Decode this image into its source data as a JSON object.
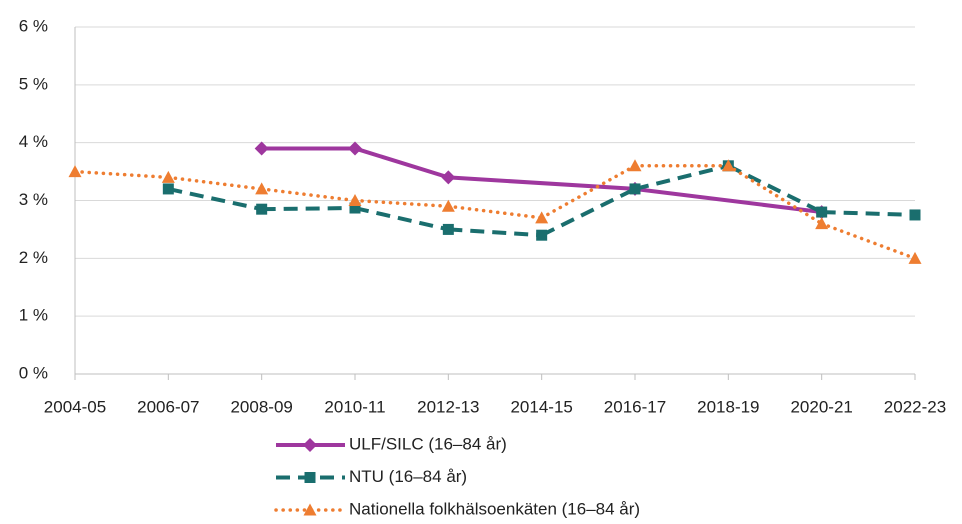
{
  "chart_data": {
    "type": "line",
    "categories": [
      "2004-05",
      "2006-07",
      "2008-09",
      "2010-11",
      "2012-13",
      "2014-15",
      "2016-17",
      "2018-19",
      "2020-21",
      "2022-23"
    ],
    "series": [
      {
        "name": "ULF/SILC (16–84 år)",
        "color": "#9e379e",
        "line_style": "solid",
        "marker": "diamond",
        "values": [
          null,
          null,
          3.9,
          3.9,
          3.4,
          null,
          3.2,
          null,
          2.8,
          null
        ]
      },
      {
        "name": "NTU (16–84 år)",
        "color": "#1a6e6e",
        "line_style": "dashed",
        "marker": "square",
        "values": [
          null,
          3.2,
          2.85,
          2.87,
          2.5,
          2.4,
          3.2,
          3.6,
          2.8,
          2.75
        ]
      },
      {
        "name": "Nationella folkhälsoenkäten (16–84 år)",
        "color": "#ee7d31",
        "line_style": "dotted",
        "marker": "triangle",
        "values": [
          3.5,
          3.4,
          3.2,
          3.0,
          2.9,
          2.7,
          3.6,
          3.6,
          2.6,
          2.0
        ]
      }
    ],
    "ylim": [
      0,
      6
    ],
    "yticks": [
      {
        "value": 0,
        "label": "0 %"
      },
      {
        "value": 1,
        "label": "1 %"
      },
      {
        "value": 2,
        "label": "2 %"
      },
      {
        "value": 3,
        "label": "3 %"
      },
      {
        "value": 4,
        "label": "4 %"
      },
      {
        "value": 5,
        "label": "5 %"
      },
      {
        "value": 6,
        "label": "6 %"
      }
    ],
    "grid": true,
    "connect_gaps": true,
    "legend": "bottom"
  }
}
